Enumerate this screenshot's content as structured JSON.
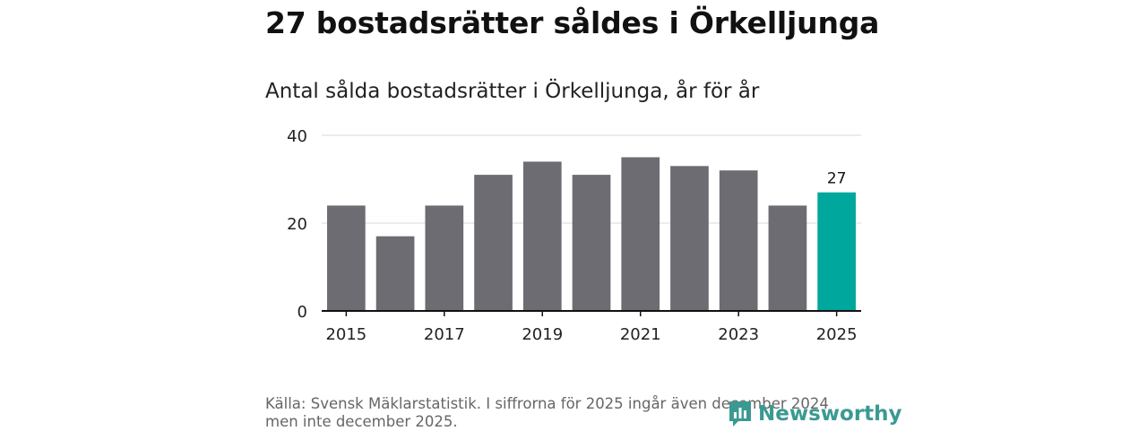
{
  "headline": "27 bostadsrätter såldes i Örkelljunga",
  "chart_data": {
    "type": "bar",
    "title": "Antal sålda bostadsrätter i Örkelljunga, år för år",
    "xlabel": "",
    "ylabel": "",
    "categories": [
      "2015",
      "2016",
      "2017",
      "2018",
      "2019",
      "2020",
      "2021",
      "2022",
      "2023",
      "2024",
      "2025"
    ],
    "values": [
      24,
      17,
      24,
      31,
      34,
      31,
      35,
      33,
      32,
      24,
      27
    ],
    "ylim": [
      0,
      40
    ],
    "yticks": [
      0,
      20,
      40
    ],
    "xtick_labels": [
      "2015",
      "2017",
      "2019",
      "2021",
      "2023",
      "2025"
    ],
    "highlight_index": 10,
    "highlight_label": "27",
    "grid": true,
    "colors": {
      "bar": "#6d6c72",
      "highlight": "#00a79d",
      "grid": "#d9d9d9",
      "axis": "#111111"
    }
  },
  "footer": {
    "source": "Källa: Svensk Mäklarstatistik. I siffrorna för 2025 ingår även december 2024 men inte december 2025.",
    "brand": "Newsworthy",
    "brand_icon": "newsworthy-logo-icon"
  }
}
